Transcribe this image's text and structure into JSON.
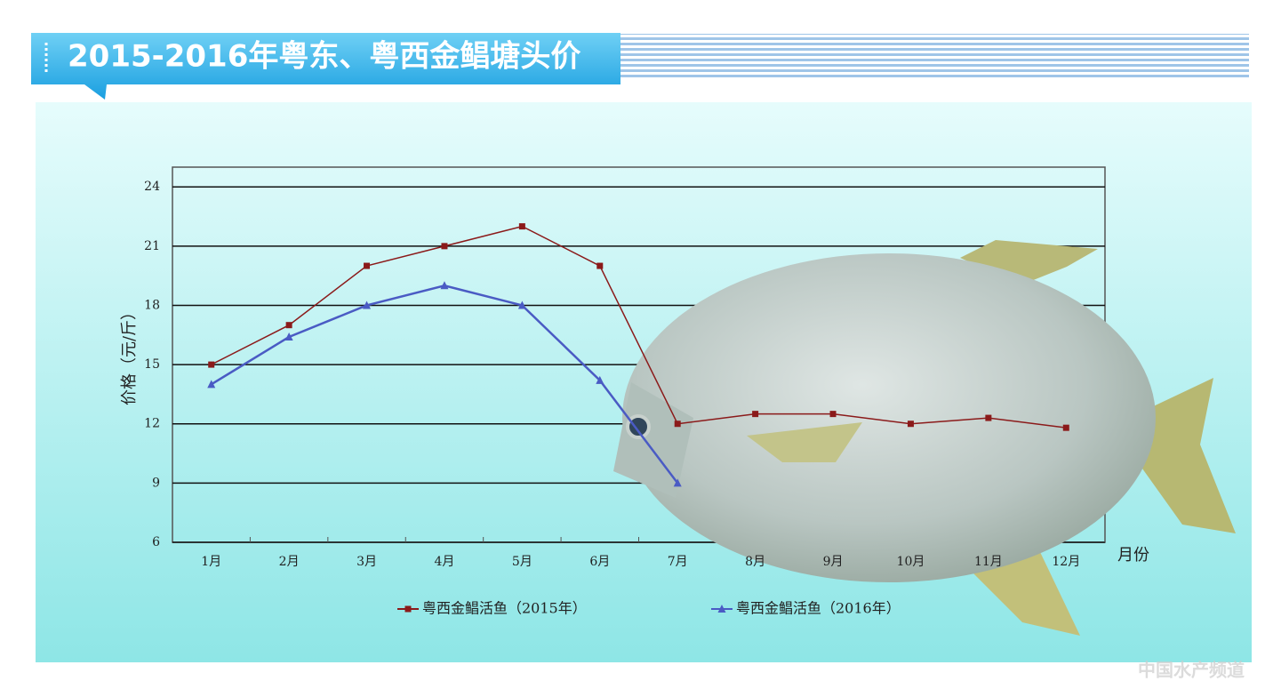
{
  "chart_data": {
    "type": "line",
    "title": "2015-2016年粤东、粤西金鲳塘头价",
    "y_label": "价格（元/斤）",
    "x_label": "月份",
    "categories": [
      "1月",
      "2月",
      "3月",
      "4月",
      "5月",
      "6月",
      "7月",
      "8月",
      "9月",
      "10月",
      "11月",
      "12月"
    ],
    "series": [
      {
        "name": "粤西金鲳活鱼（2015年）",
        "color": "#8b1a1a",
        "marker": "square",
        "values": [
          15,
          17,
          20,
          21,
          22,
          20,
          12,
          12.5,
          12.5,
          12,
          12.3,
          11.8
        ]
      },
      {
        "name": "粤西金鲳活鱼（2016年）",
        "color": "#4a5bc4",
        "marker": "triangle",
        "values": [
          14,
          16.4,
          18,
          19,
          18,
          14.2,
          9,
          null,
          null,
          null,
          null,
          null
        ]
      }
    ],
    "ylim": [
      6,
      25
    ],
    "yticks": [
      6,
      9,
      12,
      15,
      18,
      21,
      24
    ],
    "grid": true,
    "legend": "bottom",
    "watermark": "中国水产频道"
  }
}
